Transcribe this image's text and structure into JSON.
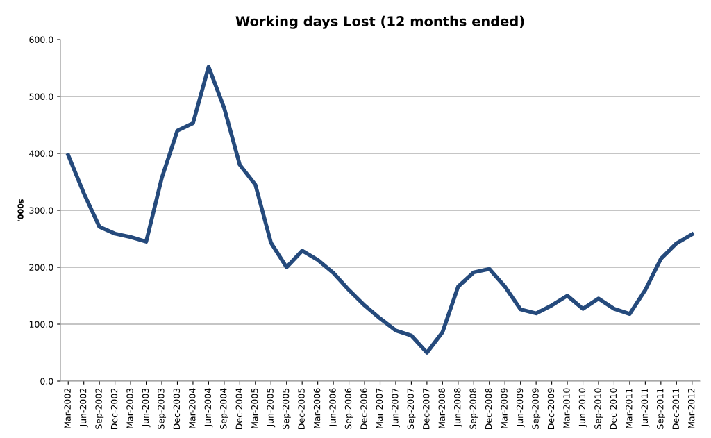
{
  "chart_data": {
    "type": "line",
    "title": "Working days Lost (12 months ended)",
    "ylabel": "'000s",
    "categories": [
      "Mar-2002",
      "Jun-2002",
      "Sep-2002",
      "Dec-2002",
      "Mar-2003",
      "Jun-2003",
      "Sep-2003",
      "Dec-2003",
      "Mar-2004",
      "Jun-2004",
      "Sep-2004",
      "Dec-2004",
      "Mar-2005",
      "Jun-2005",
      "Sep-2005",
      "Dec-2005",
      "Mar-2006",
      "Jun-2006",
      "Sep-2006",
      "Dec-2006",
      "Mar-2007",
      "Jun-2007",
      "Sep-2007",
      "Dec-2007",
      "Mar-2008",
      "Jun-2008",
      "Sep-2008",
      "Dec-2008",
      "Mar-2009",
      "Jun-2009",
      "Sep-2009",
      "Dec-2009",
      "Mar-2010",
      "Jun-2010",
      "Sep-2010",
      "Dec-2010",
      "Mar-2011",
      "Jun-2011",
      "Sep-2011",
      "Dec-2011",
      "Mar-2012"
    ],
    "series": [
      {
        "color": "#254a7c",
        "values": [
          397,
          330,
          271,
          259,
          253,
          245,
          357,
          440,
          453,
          552,
          480,
          380,
          345,
          243,
          200,
          229,
          213,
          190,
          160,
          133,
          110,
          89,
          80,
          50,
          86,
          166,
          191,
          197,
          166,
          126,
          119,
          133,
          150,
          127,
          145,
          127,
          118,
          160,
          215,
          242,
          258
        ]
      }
    ],
    "ylim": [
      0,
      600
    ],
    "yticks": [
      {
        "value": 0,
        "label": "0.0"
      },
      {
        "value": 100,
        "label": "100.0"
      },
      {
        "value": 200,
        "label": "200.0"
      },
      {
        "value": 300,
        "label": "300.0"
      },
      {
        "value": 400,
        "label": "400.0"
      },
      {
        "value": 500,
        "label": "500.0"
      },
      {
        "value": 600,
        "label": "600.0"
      }
    ],
    "grid": "y",
    "legend": false,
    "marker": "none",
    "line_style": "solid"
  }
}
